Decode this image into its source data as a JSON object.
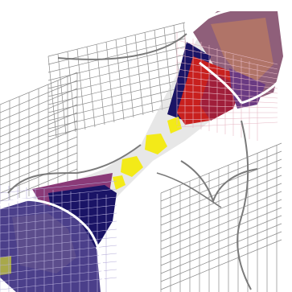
{
  "figure": {
    "background": "#ffffff",
    "colors": {
      "grid_line": "#8a8a8a",
      "empty_cube": "#ffffff",
      "boundary_curve": "#7a7a7a",
      "boundary_curve_light": "#ffffff",
      "shadow": "#c8c8c8",
      "corner_cap_violet": "#5c4d8c",
      "corner_cap_rose": "#a85a6a",
      "corner_cap_tan": "#b88a6a",
      "cube_navy": "#1a1466",
      "cube_indigo": "#2d2a7a",
      "cube_purple": "#6a3a82",
      "cube_magenta": "#8a3a78",
      "cube_red": "#c8201e",
      "cube_crimson": "#a01e3a",
      "cube_yellow": "#f3ea18",
      "cube_olive": "#a8a84a"
    },
    "icons": [
      "voxel-cube-icon",
      "corner-lens-icon",
      "saddle-curve-icon"
    ]
  }
}
